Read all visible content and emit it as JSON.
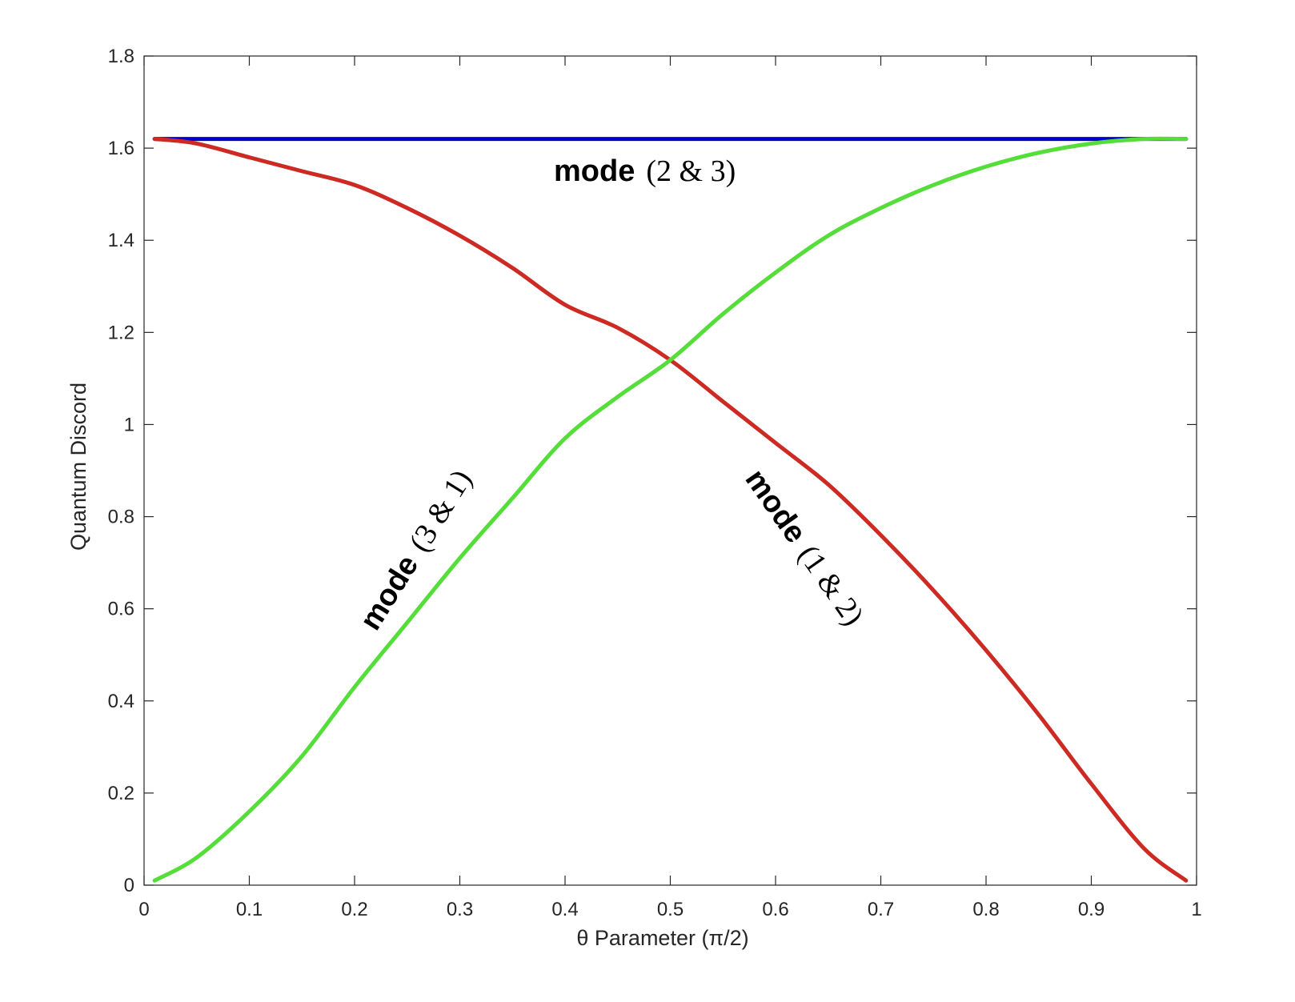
{
  "chart_data": {
    "type": "line",
    "title": "",
    "xlabel": "θ Parameter (π/2)",
    "ylabel": "Quantum Discord",
    "xlim": [
      0,
      1
    ],
    "ylim": [
      0,
      1.8
    ],
    "xticks": [
      0,
      0.1,
      0.2,
      0.3,
      0.4,
      0.5,
      0.6,
      0.7,
      0.8,
      0.9,
      1
    ],
    "xtick_labels": [
      "0",
      "0.1",
      "0.2",
      "0.3",
      "0.4",
      "0.5",
      "0.6",
      "0.7",
      "0.8",
      "0.9",
      "1"
    ],
    "yticks": [
      0,
      0.2,
      0.4,
      0.6,
      0.8,
      1,
      1.2,
      1.4,
      1.6,
      1.8
    ],
    "ytick_labels": [
      "0",
      "0.2",
      "0.4",
      "0.6",
      "0.8",
      "1",
      "1.2",
      "1.4",
      "1.6",
      "1.8"
    ],
    "grid": false,
    "legend": "none",
    "x": [
      0.01,
      0.05,
      0.1,
      0.15,
      0.2,
      0.25,
      0.3,
      0.35,
      0.4,
      0.45,
      0.5,
      0.55,
      0.6,
      0.65,
      0.7,
      0.75,
      0.8,
      0.85,
      0.9,
      0.95,
      0.99
    ],
    "series": [
      {
        "color": "#0000cc",
        "values": [
          1.62,
          1.62,
          1.62,
          1.62,
          1.62,
          1.62,
          1.62,
          1.62,
          1.62,
          1.62,
          1.62,
          1.62,
          1.62,
          1.62,
          1.62,
          1.62,
          1.62,
          1.62,
          1.62,
          1.62,
          1.62
        ]
      },
      {
        "color": "#cc2a22",
        "values": [
          1.62,
          1.61,
          1.58,
          1.55,
          1.52,
          1.47,
          1.41,
          1.34,
          1.26,
          1.21,
          1.14,
          1.05,
          0.96,
          0.87,
          0.76,
          0.64,
          0.51,
          0.37,
          0.22,
          0.08,
          0.01
        ]
      },
      {
        "color": "#55dd3a",
        "values": [
          0.01,
          0.06,
          0.16,
          0.28,
          0.43,
          0.57,
          0.71,
          0.84,
          0.97,
          1.06,
          1.14,
          1.24,
          1.33,
          1.41,
          1.47,
          1.52,
          1.56,
          1.59,
          1.61,
          1.62,
          1.62
        ]
      }
    ],
    "annotations": [
      {
        "bold": "mode",
        "rest": "(2 & 3)"
      },
      {
        "bold": "mode",
        "rest": "(3 & 1)"
      },
      {
        "bold": "mode",
        "rest": "(1 & 2)"
      }
    ]
  }
}
